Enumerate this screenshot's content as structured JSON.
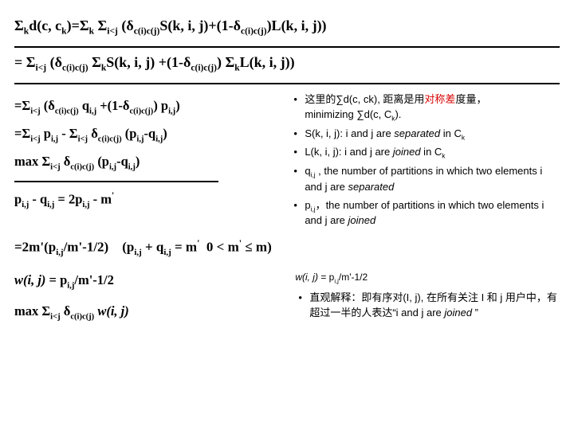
{
  "eq1_html": "Σ<sub>k</sub>d(c, c<sub>k</sub>)=Σ<sub>k</sub> Σ<sub>i&lt;j</sub> (δ<sub>c(i)c(j)</sub>S(k, i, j)+(1-δ<sub>c(i)c(j)</sub>)L(k, i, j))",
  "eq2_html": "= Σ<sub>i&lt;j</sub> (δ<sub>c(i)c(j)</sub> Σ<sub>k</sub>S(k, i, j) +(1-δ<sub>c(i)c(j)</sub>) Σ<sub>k</sub>L(k, i, j))",
  "left_eqs": [
    "=Σ<sub>i&lt;j</sub> (δ<sub>c(i)c(j)</sub> q<sub>i,j</sub> +(1-δ<sub>c(i)c(j)</sub>) p<sub>i,j</sub>)",
    "=Σ<sub>i&lt;j</sub> p<sub>i,j</sub> - Σ<sub>i&lt;j</sub> δ<sub>c(i)c(j)</sub> (p<sub>i,j</sub>-q<sub>i,j</sub>)",
    "max Σ<sub>i&lt;j</sub> δ<sub>c(i)c(j)</sub> (p<sub>i,j</sub>-q<sub>i,j</sub>)",
    "p<sub>i,j</sub> - q<sub>i,j</sub> = 2p<sub>i,j</sub> - m<sup>'</sup>"
  ],
  "right_notes": [
    "这里的∑d(c, ck), 距离是用<span class='red'>对称差</span>度量，<br><span style='color:#000'>minimizing</span> ∑d(c, C<sub>k</sub>).",
    "S(k, i, j): i and j are <span class='ital'>separated</span> in C<sub>k</sub>",
    "L(k, i, j): i and j are <span class='ital'>joined</span> in C<sub>k</sub>",
    "q<sub>i,j</sub> , the number of partitions in which two elements i and j are <span class='ital'>separated</span>",
    "p<sub>i,j</sub>，the number of partitions in which two elements i and j are <span class='ital'>joined</span>"
  ],
  "eq_wide_html": "=2m'(p<sub>i,j</sub>/m'-1/2)&nbsp;&nbsp;&nbsp;&nbsp;(p<sub>i,j</sub> + q<sub>i,j</sub> = m<sup>'</sup>&nbsp;&nbsp;0 &lt; m<sup>'</sup> ≤ m)",
  "bottom_left": [
    "<span class='ital'>w(i, j)</span> = p<sub>i,j</sub>/m'-1/2",
    "max Σ<sub>i&lt;j</sub> δ<sub>c(i)c(j)</sub> <span class='ital'>w(i, j)</span>"
  ],
  "bottom_right_top": "<span class='ital'>w(i, j)</span> = p<sub>i,j</sub>/m'-1/2",
  "bottom_right_note": "直观解释：即有序对<span class='sans'>(I, j)</span>, 在所有关注 <span class='sans'>I</span> 和 <span class='sans'>j</span> 用户中，有超过一半的人表达“<span class='sans'>i and j are <span class='ital'>joined</span> ”</span>",
  "colors": {
    "text": "#000000",
    "accent_red": "#d90000",
    "rule": "#000000",
    "bg": "#ffffff"
  },
  "fonts": {
    "math": "Times New Roman",
    "notes": "Arial"
  }
}
